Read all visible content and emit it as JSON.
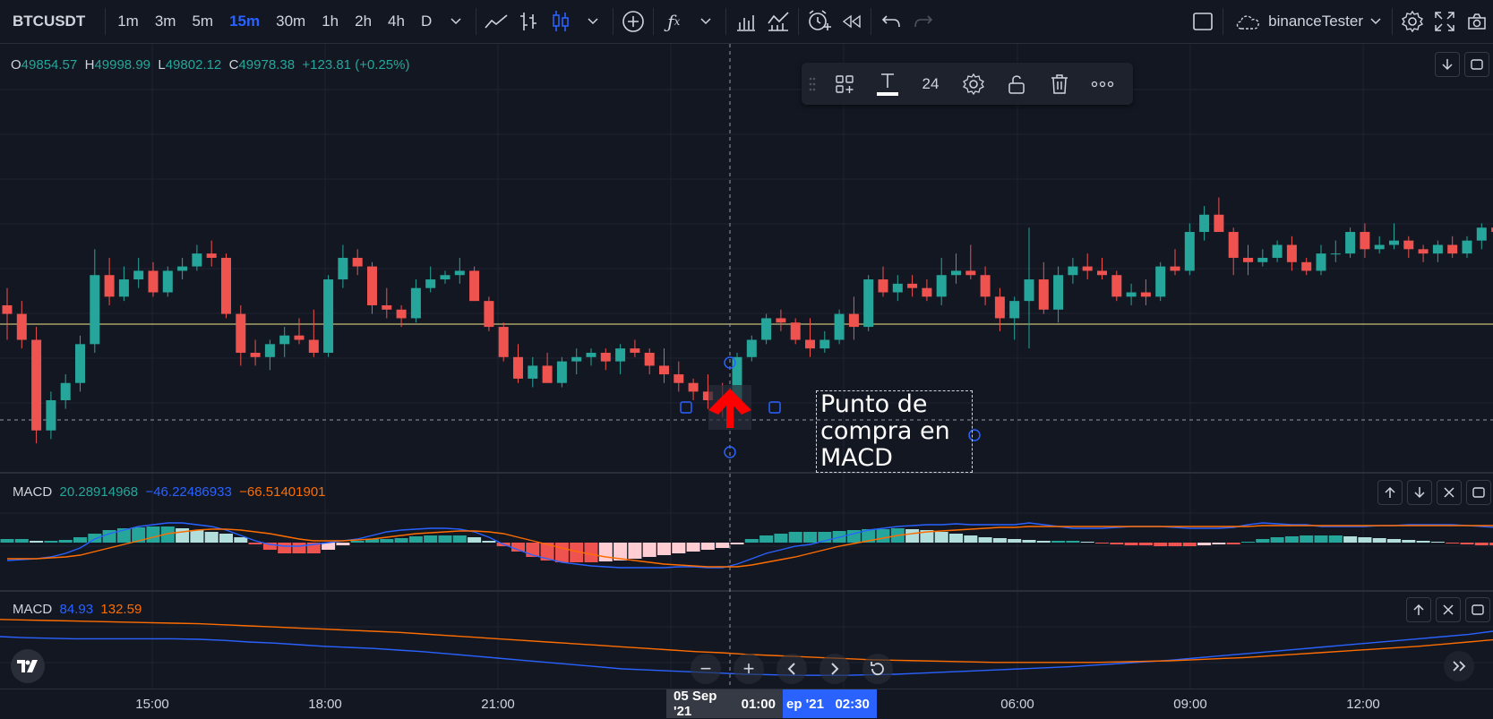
{
  "toolbar": {
    "symbol": "BTCUSDT",
    "timeframes": [
      "1m",
      "3m",
      "5m",
      "15m",
      "30m",
      "1h",
      "2h",
      "4h",
      "D"
    ],
    "active_timeframe": "15m",
    "account": "binanceTester"
  },
  "ohlc": {
    "o_label": "O",
    "o": "49854.57",
    "h_label": "H",
    "h": "49998.99",
    "l_label": "L",
    "l": "49802.12",
    "c_label": "C",
    "c": "49978.38",
    "change": "+123.81 (+0.25%)"
  },
  "drawing_toolbar": {
    "font_size": "24"
  },
  "annotation": {
    "line1": "Punto de",
    "line2": "compra en",
    "line3": "MACD"
  },
  "macd1": {
    "name": "MACD",
    "v1": "20.28914968",
    "v2": "−46.22486933",
    "v3": "−66.51401901"
  },
  "macd2": {
    "name": "MACD",
    "v1": "84.93",
    "v2": "132.59"
  },
  "time_axis": [
    "15:00",
    "18:00",
    "21:00",
    "06:00",
    "09:00",
    "12:00"
  ],
  "crosshair": {
    "date": "05 Sep '21",
    "time": "01:00",
    "date2": "ep '21",
    "time2": "02:30"
  },
  "colors": {
    "up": "#26a69a",
    "down": "#ef5350",
    "accent": "#2962ff",
    "macd_line": "#2962ff",
    "signal_line": "#ff6d00",
    "price_line": "#f0e68c"
  },
  "candles": [
    [
      49980,
      50020,
      49900,
      49960
    ],
    [
      49960,
      49990,
      49880,
      49900
    ],
    [
      49900,
      49930,
      49660,
      49690
    ],
    [
      49690,
      49780,
      49670,
      49760
    ],
    [
      49760,
      49820,
      49740,
      49800
    ],
    [
      49800,
      49910,
      49780,
      49890
    ],
    [
      49890,
      50110,
      49870,
      50050
    ],
    [
      50050,
      50090,
      49980,
      50000
    ],
    [
      50000,
      50070,
      49990,
      50040
    ],
    [
      50040,
      50090,
      50020,
      50060
    ],
    [
      50060,
      50080,
      50000,
      50010
    ],
    [
      50010,
      50070,
      50000,
      50060
    ],
    [
      50060,
      50090,
      50040,
      50070
    ],
    [
      50070,
      50120,
      50060,
      50100
    ],
    [
      50100,
      50130,
      50070,
      50090
    ],
    [
      50090,
      50100,
      49950,
      49960
    ],
    [
      49960,
      49980,
      49840,
      49870
    ],
    [
      49870,
      49900,
      49840,
      49860
    ],
    [
      49860,
      49900,
      49830,
      49890
    ],
    [
      49890,
      49930,
      49860,
      49910
    ],
    [
      49910,
      49950,
      49890,
      49900
    ],
    [
      49900,
      49970,
      49860,
      49870
    ],
    [
      49870,
      50050,
      49860,
      50040
    ],
    [
      50040,
      50120,
      50020,
      50090
    ],
    [
      50090,
      50110,
      50050,
      50070
    ],
    [
      50070,
      50080,
      49960,
      49980
    ],
    [
      49980,
      50020,
      49950,
      49970
    ],
    [
      49970,
      49980,
      49930,
      49950
    ],
    [
      49950,
      50040,
      49940,
      50020
    ],
    [
      50020,
      50070,
      50010,
      50040
    ],
    [
      50040,
      50060,
      50030,
      50050
    ],
    [
      50050,
      50090,
      50030,
      50060
    ],
    [
      50060,
      50070,
      49990,
      49990
    ],
    [
      49990,
      50000,
      49920,
      49930
    ],
    [
      49930,
      49940,
      49850,
      49860
    ],
    [
      49860,
      49890,
      49800,
      49810
    ],
    [
      49810,
      49860,
      49790,
      49840
    ],
    [
      49840,
      49870,
      49800,
      49800
    ],
    [
      49800,
      49860,
      49790,
      49850
    ],
    [
      49850,
      49880,
      49820,
      49860
    ],
    [
      49860,
      49880,
      49840,
      49870
    ],
    [
      49870,
      49880,
      49830,
      49850
    ],
    [
      49850,
      49890,
      49820,
      49880
    ],
    [
      49880,
      49900,
      49860,
      49870
    ],
    [
      49870,
      49880,
      49820,
      49840
    ],
    [
      49840,
      49880,
      49800,
      49820
    ],
    [
      49820,
      49850,
      49780,
      49800
    ],
    [
      49800,
      49810,
      49760,
      49780
    ],
    [
      49780,
      49820,
      49740,
      49760
    ],
    [
      49760,
      49800,
      49720,
      49750
    ],
    [
      49750,
      49870,
      49740,
      49860
    ],
    [
      49860,
      49910,
      49850,
      49900
    ],
    [
      49900,
      49960,
      49890,
      49950
    ],
    [
      49950,
      49970,
      49920,
      49940
    ],
    [
      49940,
      49950,
      49890,
      49900
    ],
    [
      49900,
      49950,
      49860,
      49880
    ],
    [
      49880,
      49920,
      49870,
      49900
    ],
    [
      49900,
      49970,
      49890,
      49960
    ],
    [
      49960,
      50000,
      49900,
      49930
    ],
    [
      49930,
      50050,
      49920,
      50040
    ],
    [
      50040,
      50070,
      50000,
      50010
    ],
    [
      50010,
      50050,
      49990,
      50030
    ],
    [
      50030,
      50050,
      50000,
      50020
    ],
    [
      50020,
      50040,
      49990,
      50000
    ],
    [
      50000,
      50090,
      49980,
      50050
    ],
    [
      50050,
      50100,
      50030,
      50060
    ],
    [
      50060,
      50120,
      50040,
      50050
    ],
    [
      50050,
      50070,
      49980,
      50000
    ],
    [
      50000,
      50020,
      49920,
      49950
    ],
    [
      49950,
      50000,
      49900,
      49990
    ],
    [
      49990,
      50160,
      49880,
      50040
    ],
    [
      50040,
      50080,
      49960,
      49970
    ],
    [
      49970,
      50070,
      49940,
      50050
    ],
    [
      50050,
      50090,
      50030,
      50070
    ],
    [
      50070,
      50100,
      50040,
      50060
    ],
    [
      50060,
      50090,
      50040,
      50050
    ],
    [
      50050,
      50060,
      49990,
      50000
    ],
    [
      50000,
      50030,
      49980,
      50010
    ],
    [
      50010,
      50040,
      49980,
      50000
    ],
    [
      50000,
      50080,
      49990,
      50070
    ],
    [
      50070,
      50110,
      50050,
      50060
    ],
    [
      50060,
      50170,
      50050,
      50150
    ],
    [
      50150,
      50210,
      50130,
      50190
    ],
    [
      50190,
      50230,
      50150,
      50150
    ],
    [
      50150,
      50160,
      50050,
      50090
    ],
    [
      50090,
      50120,
      50050,
      50080
    ],
    [
      50080,
      50110,
      50070,
      50090
    ],
    [
      50090,
      50130,
      50080,
      50120
    ],
    [
      50120,
      50140,
      50060,
      50080
    ],
    [
      50080,
      50090,
      50050,
      50060
    ],
    [
      50060,
      50120,
      50050,
      50100
    ],
    [
      50100,
      50130,
      50080,
      50100
    ],
    [
      50100,
      50160,
      50090,
      50150
    ],
    [
      50150,
      50170,
      50090,
      50110
    ],
    [
      50110,
      50140,
      50100,
      50120
    ],
    [
      50120,
      50170,
      50110,
      50130
    ],
    [
      50130,
      50140,
      50090,
      50110
    ],
    [
      50110,
      50120,
      50080,
      50100
    ],
    [
      50100,
      50130,
      50080,
      50120
    ],
    [
      50120,
      50140,
      50090,
      50100
    ],
    [
      50100,
      50140,
      50090,
      50130
    ],
    [
      50130,
      50170,
      50110,
      50160
    ],
    [
      50160,
      50170,
      50130,
      50150
    ],
    [
      50150,
      50310,
      50140,
      50280
    ],
    [
      50280,
      50350,
      50240,
      50340
    ],
    [
      50340,
      50360,
      50300,
      50320
    ],
    [
      50320,
      50340,
      50300,
      50310
    ],
    [
      50310,
      50380,
      50300,
      50370
    ],
    [
      50370,
      50440,
      50350,
      50410
    ]
  ],
  "macd1_hist": [
    4,
    4,
    2,
    2,
    3,
    6,
    10,
    14,
    16,
    17,
    18,
    18,
    16,
    14,
    12,
    10,
    6,
    -2,
    -8,
    -12,
    -12,
    -12,
    -8,
    -3,
    2,
    4,
    4,
    5,
    7,
    8,
    8,
    8,
    6,
    2,
    -4,
    -10,
    -16,
    -20,
    -22,
    -22,
    -22,
    -21,
    -20,
    -18,
    -16,
    -14,
    -12,
    -10,
    -8,
    -6,
    -2,
    4,
    8,
    10,
    12,
    12,
    12,
    13,
    14,
    15,
    15,
    16,
    15,
    14,
    12,
    10,
    8,
    6,
    5,
    4,
    3,
    2,
    2,
    2,
    1,
    -1,
    -2,
    -3,
    -3,
    -4,
    -4,
    -4,
    -3,
    -2,
    -2,
    1,
    4,
    6,
    7,
    8,
    8,
    8,
    7,
    6,
    5,
    4,
    3,
    2,
    1,
    -1,
    -2,
    -3,
    -3,
    -4,
    -4,
    -3,
    -2,
    -1,
    -1,
    -2,
    2,
    8,
    13,
    16,
    18,
    20
  ],
  "macd1_line": [
    -20,
    -19,
    -18,
    -16,
    -12,
    -6,
    4,
    10,
    14,
    18,
    20,
    22,
    22,
    20,
    18,
    14,
    8,
    2,
    -2,
    -4,
    -4,
    -2,
    0,
    2,
    4,
    8,
    12,
    14,
    15,
    16,
    16,
    15,
    12,
    6,
    -2,
    -8,
    -14,
    -18,
    -22,
    -24,
    -26,
    -27,
    -28,
    -28,
    -28,
    -28,
    -27,
    -27,
    -28,
    -28,
    -24,
    -18,
    -12,
    -8,
    -4,
    -2,
    2,
    6,
    10,
    14,
    16,
    18,
    19,
    20,
    20,
    21,
    20,
    20,
    20,
    20,
    22,
    20,
    18,
    16,
    16,
    16,
    17,
    18,
    18,
    18,
    17,
    16,
    16,
    16,
    17,
    20,
    22,
    21,
    20,
    20,
    18,
    18,
    18,
    18,
    19,
    19,
    20,
    20,
    20,
    20,
    19,
    18,
    17,
    18,
    20,
    22,
    26,
    32,
    40,
    44,
    46,
    50
  ],
  "macd1_signal": [
    -18,
    -18,
    -18,
    -17,
    -16,
    -14,
    -10,
    -6,
    -2,
    2,
    6,
    10,
    12,
    14,
    15,
    15,
    14,
    12,
    10,
    7,
    4,
    2,
    2,
    2,
    3,
    4,
    6,
    8,
    10,
    11,
    12,
    13,
    13,
    12,
    10,
    6,
    2,
    -2,
    -6,
    -10,
    -13,
    -16,
    -18,
    -20,
    -22,
    -24,
    -25,
    -26,
    -27,
    -27,
    -27,
    -25,
    -22,
    -19,
    -16,
    -12,
    -8,
    -4,
    -1,
    2,
    5,
    8,
    10,
    12,
    13,
    14,
    15,
    16,
    17,
    17,
    18,
    18,
    18,
    18,
    18,
    18,
    18,
    18,
    18,
    18,
    18,
    18,
    18,
    18,
    18,
    18,
    19,
    19,
    19,
    19,
    19,
    19,
    19,
    19,
    19,
    19,
    19,
    19,
    19,
    19,
    19,
    19,
    19,
    19,
    19,
    20,
    21,
    24,
    27,
    31,
    35,
    39
  ],
  "macd2_line": [
    60,
    58,
    57,
    56,
    56,
    56,
    56,
    56,
    55,
    53,
    50,
    48,
    45,
    42,
    40,
    38,
    35,
    32,
    28,
    24,
    20,
    16,
    12,
    8,
    4,
    0,
    -2,
    -4,
    -6,
    -8,
    -10,
    -11,
    -12,
    -12,
    -12,
    -11,
    -10,
    -8,
    -6,
    -4,
    -2,
    0,
    2,
    4,
    7,
    10,
    13,
    16,
    20,
    24,
    28,
    32,
    36,
    40,
    44,
    48,
    52,
    56,
    60,
    64,
    70
  ],
  "macd2_signal": [
    92,
    91,
    90,
    89,
    88,
    87,
    86,
    85,
    84,
    82,
    80,
    78,
    76,
    74,
    72,
    70,
    68,
    65,
    62,
    59,
    56,
    53,
    50,
    47,
    44,
    41,
    38,
    35,
    32,
    30,
    27,
    25,
    23,
    21,
    19,
    17,
    16,
    15,
    14,
    13,
    12,
    12,
    12,
    12,
    12,
    13,
    14,
    15,
    17,
    19,
    21,
    24,
    27,
    30,
    33,
    36,
    39,
    42,
    46,
    50,
    54
  ]
}
